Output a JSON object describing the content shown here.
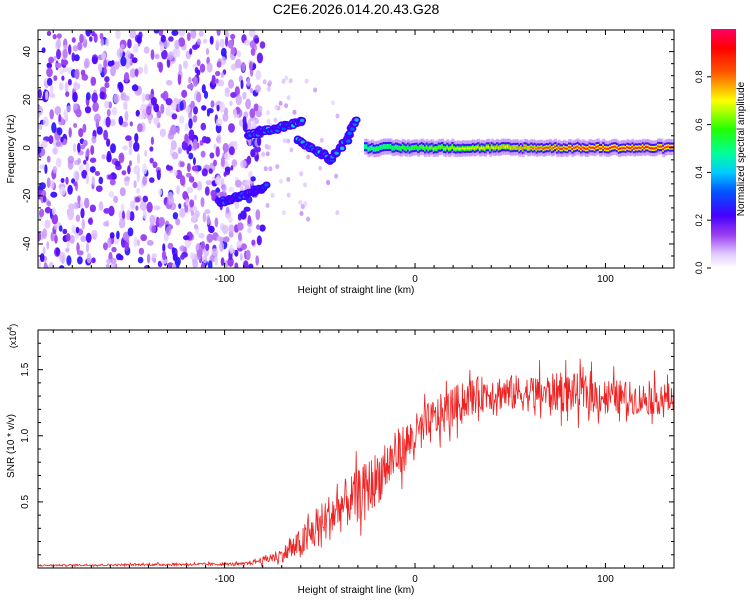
{
  "title": "C2E6.2026.014.20.43.G28",
  "chart_data": [
    {
      "type": "heatmap",
      "xlabel": "Height of straight line (km)",
      "ylabel": "Frequency (Hz)",
      "xlim": [
        -198,
        136
      ],
      "ylim": [
        -50,
        49
      ],
      "x_ticks": [
        -100,
        0,
        100
      ],
      "x_tick_labels": [
        "-100",
        "0",
        "100"
      ],
      "y_ticks": [
        -40,
        -20,
        0,
        20,
        40
      ],
      "y_tick_labels": [
        "-40",
        "-20",
        "0",
        "20",
        "40"
      ],
      "colorbar": {
        "label": "Normalized spectral amplitude",
        "range": [
          0,
          1
        ],
        "ticks": [
          0.0,
          0.2,
          0.4,
          0.6,
          0.8
        ],
        "tick_labels": [
          "0.0",
          "0.2",
          "0.4",
          "0.6",
          "0.8"
        ],
        "colormap": "rainbow (white-violet-blue-cyan-green-yellow-red-magenta)"
      },
      "features": {
        "noise_region_x": [
          -198,
          -80
        ],
        "noise_amplitude": 0.3,
        "lower_branch": {
          "x": [
            -103,
            -95,
            -85,
            -78
          ],
          "freq": [
            -23,
            -21,
            -18,
            -16
          ],
          "amplitude": 0.3
        },
        "upper_branch": {
          "x": [
            -88,
            -78,
            -68,
            -58
          ],
          "freq": [
            5,
            7,
            9,
            11
          ],
          "amplitude": 0.35
        },
        "crossing_branch": {
          "x": [
            -62,
            -52,
            -44,
            -36,
            -30
          ],
          "freq": [
            3,
            -1,
            -5,
            3,
            13
          ],
          "amplitude": 0.35
        },
        "carrier": {
          "x_range": [
            -26,
            136
          ],
          "freq": 0,
          "amplitude_near": 0.5,
          "amplitude_far": 0.88
        }
      }
    },
    {
      "type": "line",
      "xlabel": "Height of straight line (km)",
      "ylabel": "SNR (10 * v/v)",
      "multiplier": "(x10",
      "multiplier_exp": "4",
      "xlim": [
        -198,
        136
      ],
      "ylim": [
        0,
        1.8
      ],
      "x_ticks": [
        -100,
        0,
        100
      ],
      "x_tick_labels": [
        "-100",
        "0",
        "100"
      ],
      "y_ticks": [
        0.5,
        1.0,
        1.5
      ],
      "y_tick_labels": [
        "0.5",
        "1.0",
        "1.5"
      ],
      "color": "#ee2222",
      "series": [
        {
          "name": "SNR",
          "x": [
            -198,
            -90,
            -80,
            -70,
            -60,
            -50,
            -40,
            -30,
            -20,
            -10,
            0,
            10,
            20,
            30,
            40,
            60,
            80,
            100,
            120,
            136
          ],
          "y": [
            0.02,
            0.03,
            0.06,
            0.1,
            0.18,
            0.32,
            0.45,
            0.55,
            0.68,
            0.85,
            1.0,
            1.12,
            1.22,
            1.3,
            1.33,
            1.32,
            1.33,
            1.3,
            1.28,
            1.28
          ],
          "noise_peak": [
            0.01,
            0.02,
            0.05,
            0.1,
            0.22,
            0.3,
            0.35,
            0.35,
            0.38,
            0.35,
            0.3,
            0.3,
            0.28,
            0.25,
            0.25,
            0.25,
            0.28,
            0.25,
            0.22,
            0.22
          ]
        }
      ]
    }
  ]
}
